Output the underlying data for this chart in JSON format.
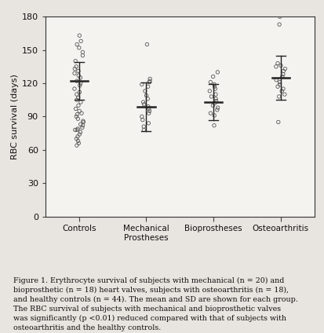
{
  "groups": [
    "Controls",
    "Mechanical\nProstheses",
    "Bioprostheses",
    "Osteoarthritis"
  ],
  "means": [
    122,
    99,
    103,
    125
  ],
  "sds": [
    17,
    22,
    16,
    20
  ],
  "data_points": {
    "Controls": [
      163,
      158,
      155,
      152,
      148,
      145,
      140,
      135,
      133,
      131,
      129,
      127,
      125,
      122,
      120,
      118,
      115,
      112,
      110,
      107,
      105,
      103,
      100,
      97,
      95,
      93,
      92,
      90,
      88,
      86,
      85,
      83,
      82,
      80,
      79,
      78,
      76,
      74,
      72,
      70,
      68,
      66,
      64,
      78
    ],
    "Mechanical\nProstheses": [
      155,
      124,
      122,
      121,
      119,
      117,
      113,
      109,
      106,
      103,
      101,
      99,
      97,
      95,
      93,
      90,
      87,
      84,
      81,
      78
    ],
    "Bioprostheses": [
      130,
      126,
      121,
      119,
      117,
      115,
      113,
      110,
      108,
      106,
      104,
      102,
      100,
      98,
      96,
      93,
      91,
      82
    ],
    "Osteoarthritis": [
      180,
      173,
      138,
      136,
      135,
      133,
      131,
      128,
      126,
      123,
      121,
      119,
      117,
      115,
      113,
      110,
      108,
      85
    ]
  },
  "ylabel": "RBC survival (days)",
  "ylim": [
    0,
    180
  ],
  "yticks": [
    0,
    30,
    60,
    90,
    120,
    150,
    180
  ],
  "figure_caption": "Figure 1. Erythrocyte survival of subjects with mechanical (n = 20) and\nbioprosthetic (n = 18) heart valves, subjects with osteoarthritis (n = 18),\nand healthy controls (n = 44). The mean and SD are shown for each group.\nThe RBC survival of subjects with mechanical and bioprosthetic valves\nwas significantly (p <0.01) reduced compared with that of subjects with\nosteoarthritis and the healthy controls.",
  "bg_color": "#e8e4df",
  "plot_bg_color": "#f5f3f0",
  "marker_color": "none",
  "marker_edge_color": "#555555",
  "mean_line_color": "#222222",
  "errorbar_color": "#222222",
  "text_color": "#111111"
}
